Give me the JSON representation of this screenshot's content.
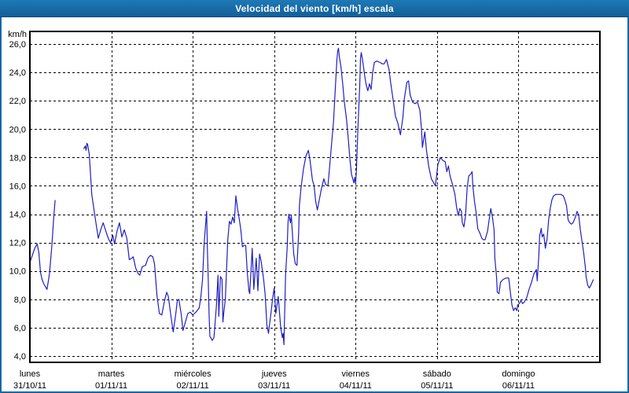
{
  "window": {
    "title": "Velocidad del viento [km/h] escala"
  },
  "colors": {
    "titlebar_bg": "#1569a6",
    "titlebar_text": "#ffffff",
    "frame_border": "#1569a6",
    "line": "#1f1fc4",
    "grid": "#000000",
    "axis_text": "#000000",
    "plot_bg": "#ffffff"
  },
  "chart_data": {
    "type": "line",
    "title": "Velocidad del viento [km/h] escala",
    "grid": "dashed",
    "legend": "none",
    "y_axis": {
      "unit": "km/h",
      "min": 4,
      "max": 26,
      "step": 2,
      "ticks": [
        {
          "value": 26,
          "label": "26,0"
        },
        {
          "value": 24,
          "label": "24,0"
        },
        {
          "value": 22,
          "label": "22,0"
        },
        {
          "value": 20,
          "label": "20,0"
        },
        {
          "value": 18,
          "label": "18,0"
        },
        {
          "value": 16,
          "label": "16,0"
        },
        {
          "value": 14,
          "label": "14,0"
        },
        {
          "value": 12,
          "label": "12,0"
        },
        {
          "value": 10,
          "label": "10,0"
        },
        {
          "value": 8,
          "label": "8,0"
        },
        {
          "value": 6,
          "label": "6,0"
        },
        {
          "value": 4,
          "label": "4,0"
        }
      ]
    },
    "x_axis": {
      "span_days": 7,
      "days": [
        {
          "name": "lunes",
          "date": "31/10/11"
        },
        {
          "name": "martes",
          "date": "01/11/11"
        },
        {
          "name": "miércoles",
          "date": "02/11/11"
        },
        {
          "name": "jueves",
          "date": "03/11/11"
        },
        {
          "name": "viernes",
          "date": "04/11/11"
        },
        {
          "name": "sábado",
          "date": "05/11/11"
        },
        {
          "name": "domingo",
          "date": "06/11/11"
        }
      ]
    },
    "series": [
      {
        "name": "Velocidad del viento",
        "unit": "km/h",
        "color": "#1f1fc4",
        "x_unit": "days since lunes 31/10/11 00:00",
        "points": [
          [
            0,
            10.6
          ],
          [
            0.03,
            11.1
          ],
          [
            0.06,
            11.6
          ],
          [
            0.09,
            11.9
          ],
          [
            0.11,
            11.3
          ],
          [
            0.13,
            9.9
          ],
          [
            0.15,
            9.4
          ],
          [
            0.17,
            9.1
          ],
          [
            0.19,
            8.9
          ],
          [
            0.21,
            8.7
          ],
          [
            0.24,
            9.8
          ],
          [
            0.27,
            11.8
          ],
          [
            0.29,
            13.5
          ],
          [
            0.31,
            15.0
          ],
          null,
          [
            0.66,
            18.6
          ],
          [
            0.68,
            18.8
          ],
          [
            0.69,
            18.5
          ],
          [
            0.7,
            19.0
          ],
          [
            0.71,
            18.9
          ],
          [
            0.73,
            18.2
          ],
          [
            0.75,
            16.3
          ],
          [
            0.76,
            15.4
          ],
          [
            0.78,
            14.6
          ],
          [
            0.8,
            13.8
          ],
          [
            0.84,
            12.3
          ],
          [
            0.87,
            12.9
          ],
          [
            0.9,
            13.4
          ],
          [
            0.95,
            12.5
          ],
          [
            0.97,
            12.2
          ],
          [
            0.99,
            12.0
          ],
          [
            1.02,
            12.5
          ],
          [
            1.04,
            11.9
          ],
          [
            1.07,
            12.8
          ],
          [
            1.1,
            13.4
          ],
          [
            1.13,
            12.4
          ],
          [
            1.16,
            12.9
          ],
          [
            1.19,
            12.3
          ],
          [
            1.22,
            10.8
          ],
          [
            1.25,
            10.9
          ],
          [
            1.27,
            11.0
          ],
          [
            1.3,
            10.2
          ],
          [
            1.33,
            9.8
          ],
          [
            1.35,
            9.7
          ],
          [
            1.38,
            10.3
          ],
          [
            1.42,
            10.4
          ],
          [
            1.45,
            10.9
          ],
          [
            1.48,
            11.1
          ],
          [
            1.51,
            11.0
          ],
          [
            1.53,
            10.5
          ],
          [
            1.56,
            8.3
          ],
          [
            1.59,
            7.0
          ],
          [
            1.62,
            6.9
          ],
          [
            1.65,
            7.8
          ],
          [
            1.68,
            8.5
          ],
          [
            1.7,
            8.2
          ],
          [
            1.73,
            6.9
          ],
          [
            1.76,
            5.7
          ],
          [
            1.79,
            6.9
          ],
          [
            1.81,
            7.9
          ],
          [
            1.83,
            8.0
          ],
          [
            1.86,
            6.9
          ],
          [
            1.88,
            5.8
          ],
          [
            1.91,
            6.4
          ],
          [
            1.94,
            7.0
          ],
          [
            1.97,
            7.1
          ],
          [
            2.0,
            6.9
          ],
          [
            2.04,
            7.1
          ],
          [
            2.08,
            7.4
          ],
          [
            2.1,
            8.2
          ],
          [
            2.12,
            9.4
          ],
          [
            2.14,
            11.9
          ],
          [
            2.16,
            13.4
          ],
          [
            2.17,
            14.2
          ],
          [
            2.18,
            11.5
          ],
          [
            2.19,
            9.5
          ],
          [
            2.2,
            7.0
          ],
          [
            2.21,
            5.4
          ],
          [
            2.24,
            5.1
          ],
          [
            2.26,
            5.3
          ],
          [
            2.29,
            7.5
          ],
          [
            2.31,
            9.7
          ],
          [
            2.32,
            6.8
          ],
          [
            2.34,
            9.6
          ],
          [
            2.36,
            9.4
          ],
          [
            2.37,
            6.4
          ],
          [
            2.38,
            7.0
          ],
          [
            2.4,
            8.0
          ],
          [
            2.43,
            12.2
          ],
          [
            2.45,
            13.5
          ],
          [
            2.47,
            13.3
          ],
          [
            2.49,
            13.8
          ],
          [
            2.51,
            13.4
          ],
          [
            2.53,
            15.3
          ],
          [
            2.55,
            14.4
          ],
          [
            2.57,
            13.7
          ],
          [
            2.59,
            12.9
          ],
          [
            2.61,
            11.7
          ],
          [
            2.63,
            11.8
          ],
          [
            2.65,
            11.8
          ],
          [
            2.67,
            9.9
          ],
          [
            2.69,
            8.6
          ],
          [
            2.7,
            8.4
          ],
          [
            2.73,
            11.6
          ],
          [
            2.75,
            8.7
          ],
          [
            2.78,
            10.9
          ],
          [
            2.8,
            8.6
          ],
          [
            2.82,
            11.2
          ],
          [
            2.84,
            10.7
          ],
          [
            2.87,
            9.4
          ],
          [
            2.89,
            8.3
          ],
          [
            2.91,
            6.2
          ],
          [
            2.93,
            5.6
          ],
          [
            2.94,
            6.1
          ],
          [
            2.96,
            7.0
          ],
          [
            2.98,
            8.0
          ],
          [
            3.0,
            8.8
          ],
          [
            3.02,
            7.0
          ],
          [
            3.05,
            8.2
          ],
          [
            3.08,
            6.0
          ],
          [
            3.1,
            5.3
          ],
          [
            3.11,
            5.6
          ],
          [
            3.12,
            4.8
          ],
          [
            3.14,
            9.7
          ],
          [
            3.16,
            11.7
          ],
          [
            3.17,
            13.4
          ],
          [
            3.18,
            14.0
          ],
          [
            3.2,
            13.4
          ],
          [
            3.21,
            13.9
          ],
          [
            3.23,
            12.1
          ],
          [
            3.24,
            11.2
          ],
          [
            3.26,
            10.5
          ],
          [
            3.28,
            10.4
          ],
          [
            3.3,
            12.6
          ],
          [
            3.31,
            14.6
          ],
          [
            3.33,
            15.9
          ],
          [
            3.36,
            17.2
          ],
          [
            3.39,
            18.1
          ],
          [
            3.42,
            18.5
          ],
          [
            3.44,
            17.8
          ],
          [
            3.47,
            16.4
          ],
          [
            3.49,
            16.0
          ],
          [
            3.51,
            14.9
          ],
          [
            3.53,
            14.3
          ],
          [
            3.55,
            14.9
          ],
          [
            3.58,
            15.8
          ],
          [
            3.61,
            16.5
          ],
          [
            3.63,
            16.1
          ],
          [
            3.66,
            16.0
          ],
          [
            3.7,
            18.6
          ],
          [
            3.73,
            20.6
          ],
          [
            3.75,
            22.8
          ],
          [
            3.77,
            24.9
          ],
          [
            3.78,
            25.5
          ],
          [
            3.79,
            25.7
          ],
          [
            3.8,
            25.1
          ],
          [
            3.82,
            24.4
          ],
          [
            3.84,
            23.3
          ],
          [
            3.86,
            22.0
          ],
          [
            3.89,
            20.6
          ],
          [
            3.91,
            19.3
          ],
          [
            3.93,
            17.9
          ],
          [
            3.95,
            16.8
          ],
          [
            3.98,
            16.2
          ],
          [
            3.99,
            16.6
          ],
          [
            4.0,
            16.2
          ],
          [
            4.01,
            17.1
          ],
          [
            4.03,
            20.3
          ],
          [
            4.05,
            23.0
          ],
          [
            4.06,
            25.0
          ],
          [
            4.07,
            25.4
          ],
          [
            4.09,
            24.7
          ],
          [
            4.11,
            23.8
          ],
          [
            4.13,
            23.1
          ],
          [
            4.15,
            22.7
          ],
          [
            4.17,
            23.2
          ],
          [
            4.19,
            22.8
          ],
          [
            4.21,
            24.0
          ],
          [
            4.23,
            24.7
          ],
          [
            4.26,
            24.8
          ],
          [
            4.3,
            24.7
          ],
          [
            4.33,
            24.6
          ],
          [
            4.35,
            24.6
          ],
          [
            4.38,
            24.9
          ],
          [
            4.41,
            24.2
          ],
          [
            4.43,
            23.3
          ],
          [
            4.46,
            22.1
          ],
          [
            4.49,
            20.9
          ],
          [
            4.52,
            20.4
          ],
          [
            4.55,
            19.6
          ],
          [
            4.58,
            20.8
          ],
          [
            4.6,
            22.2
          ],
          [
            4.63,
            23.3
          ],
          [
            4.65,
            23.4
          ],
          [
            4.67,
            22.4
          ],
          [
            4.7,
            21.9
          ],
          [
            4.73,
            21.8
          ],
          [
            4.76,
            21.9
          ],
          [
            4.79,
            21.3
          ],
          [
            4.81,
            19.9
          ],
          [
            4.82,
            18.7
          ],
          [
            4.85,
            19.8
          ],
          [
            4.87,
            18.5
          ],
          [
            4.9,
            17.3
          ],
          [
            4.93,
            16.5
          ],
          [
            4.96,
            16.2
          ],
          [
            4.98,
            16.0
          ],
          [
            5.01,
            17.5
          ],
          [
            5.04,
            18.0
          ],
          [
            5.07,
            17.8
          ],
          [
            5.1,
            17.7
          ],
          [
            5.12,
            17.0
          ],
          [
            5.14,
            17.4
          ],
          [
            5.16,
            16.7
          ],
          [
            5.19,
            16.1
          ],
          [
            5.22,
            15.4
          ],
          [
            5.24,
            14.5
          ],
          [
            5.26,
            13.9
          ],
          [
            5.28,
            14.4
          ],
          [
            5.3,
            14.2
          ],
          [
            5.31,
            13.4
          ],
          [
            5.33,
            13.1
          ],
          [
            5.35,
            13.9
          ],
          [
            5.37,
            15.9
          ],
          [
            5.39,
            16.7
          ],
          [
            5.41,
            16.8
          ],
          [
            5.43,
            17.0
          ],
          [
            5.44,
            16.0
          ],
          [
            5.46,
            14.9
          ],
          [
            5.48,
            14.1
          ],
          [
            5.5,
            13.0
          ],
          [
            5.53,
            12.6
          ],
          [
            5.55,
            12.3
          ],
          [
            5.57,
            12.2
          ],
          [
            5.59,
            12.2
          ],
          [
            5.62,
            12.8
          ],
          [
            5.64,
            13.6
          ],
          [
            5.66,
            14.4
          ],
          [
            5.68,
            13.8
          ],
          [
            5.7,
            12.9
          ],
          [
            5.71,
            10.9
          ],
          [
            5.73,
            9.6
          ],
          [
            5.74,
            8.5
          ],
          [
            5.76,
            8.4
          ],
          [
            5.78,
            9.2
          ],
          [
            5.81,
            9.4
          ],
          [
            5.85,
            9.5
          ],
          [
            5.88,
            9.5
          ],
          [
            5.9,
            8.5
          ],
          [
            5.92,
            7.6
          ],
          [
            5.94,
            7.2
          ],
          [
            5.96,
            7.4
          ],
          [
            5.98,
            7.2
          ],
          [
            5.99,
            7.6
          ],
          [
            6.01,
            7.7
          ],
          [
            6.03,
            7.9
          ],
          [
            6.05,
            7.7
          ],
          [
            6.07,
            7.8
          ],
          [
            6.1,
            8.1
          ],
          [
            6.13,
            8.7
          ],
          [
            6.16,
            9.2
          ],
          [
            6.19,
            9.8
          ],
          [
            6.22,
            10.1
          ],
          [
            6.23,
            9.3
          ],
          [
            6.25,
            11.1
          ],
          [
            6.26,
            12.5
          ],
          [
            6.28,
            13.0
          ],
          [
            6.29,
            12.4
          ],
          [
            6.31,
            12.6
          ],
          [
            6.33,
            11.6
          ],
          [
            6.35,
            12.2
          ],
          [
            6.37,
            13.6
          ],
          [
            6.39,
            14.4
          ],
          [
            6.41,
            15.0
          ],
          [
            6.43,
            15.3
          ],
          [
            6.46,
            15.4
          ],
          [
            6.49,
            15.4
          ],
          [
            6.52,
            15.4
          ],
          [
            6.55,
            15.3
          ],
          [
            6.57,
            15.0
          ],
          [
            6.59,
            14.6
          ],
          [
            6.61,
            13.6
          ],
          [
            6.63,
            13.4
          ],
          [
            6.65,
            13.3
          ],
          [
            6.67,
            13.4
          ],
          [
            6.7,
            13.8
          ],
          [
            6.72,
            14.2
          ],
          [
            6.74,
            13.9
          ],
          [
            6.76,
            12.9
          ],
          [
            6.78,
            12.1
          ],
          [
            6.8,
            11.3
          ],
          [
            6.82,
            10.3
          ],
          [
            6.83,
            9.6
          ],
          [
            6.85,
            9.0
          ],
          [
            6.87,
            8.8
          ],
          [
            6.89,
            9.0
          ],
          [
            6.92,
            9.4
          ]
        ]
      }
    ]
  }
}
